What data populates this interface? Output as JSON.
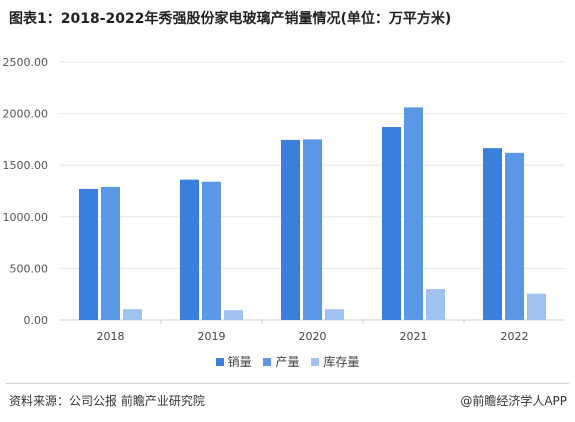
{
  "title": "图表1：2018-2022年秀强股份家电玻璃产销量情况(单位：万平方米)",
  "source": "资料来源：公司公报 前瞻产业研究院",
  "brand": "@前瞻经济学人APP",
  "colors": {
    "sales": "#3a7fdc",
    "production": "#5a98e6",
    "inventory": "#9fc2f1",
    "grid": "#e6e6e6",
    "axis": "#cccccc"
  },
  "chart_data": {
    "type": "bar",
    "categories": [
      "2018",
      "2019",
      "2020",
      "2021",
      "2022"
    ],
    "series": [
      {
        "name": "销量",
        "values": [
          1270,
          1360,
          1745,
          1870,
          1665
        ]
      },
      {
        "name": "产量",
        "values": [
          1290,
          1340,
          1750,
          2060,
          1620
        ]
      },
      {
        "name": "库存量",
        "values": [
          105,
          95,
          105,
          300,
          255
        ]
      }
    ],
    "y_ticks": [
      "0.00",
      "500.00",
      "1000.00",
      "1500.00",
      "2000.00",
      "2500.00"
    ],
    "ylim": [
      0,
      2500
    ],
    "grid": true,
    "legend_position": "bottom"
  }
}
